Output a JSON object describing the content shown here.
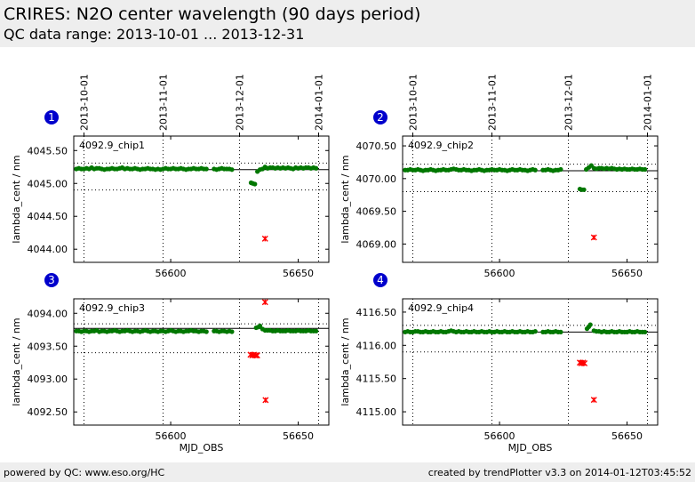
{
  "header": {
    "title": "CRIRES: N2O center wavelength (90 days period)",
    "subtitle": "QC data range: 2013-10-01 ... 2013-12-31"
  },
  "footer": {
    "left": "powered by QC: www.eso.org/HC",
    "right": "created by trendPlotter v3.3 on 2014-01-12T03:45:52"
  },
  "chart_data": [
    {
      "type": "scatter",
      "panel_number": "1",
      "label": "4092.9_chip1",
      "ylabel": "lambda_cent / nm",
      "xlabel": "",
      "xlim": [
        56562,
        56662
      ],
      "ylim": [
        4043.8,
        4045.72
      ],
      "yticks": [
        4044.0,
        4044.5,
        4045.0,
        4045.5
      ],
      "xticks": [
        56600,
        56650
      ],
      "date_ticks": [
        {
          "x": 56566,
          "label": "2013-10-01"
        },
        {
          "x": 56597,
          "label": "2013-11-01"
        },
        {
          "x": 56627,
          "label": "2013-12-01"
        },
        {
          "x": 56658,
          "label": "2014-01-01"
        }
      ],
      "ref_line": 4045.21,
      "dotted_lines": [
        4045.31,
        4044.9
      ],
      "series": [
        {
          "marker": "circle",
          "color": "#007700",
          "x": [
            56563,
            56564,
            56565,
            56566,
            56567,
            56568,
            56569,
            56570,
            56571,
            56572,
            56573,
            56574,
            56575,
            56576,
            56577,
            56578,
            56579,
            56580,
            56581,
            56582,
            56583,
            56584,
            56585,
            56586,
            56587,
            56588,
            56589,
            56590,
            56591,
            56592,
            56593,
            56594,
            56595,
            56596,
            56597,
            56598,
            56599,
            56600,
            56601,
            56602,
            56603,
            56604,
            56605,
            56606,
            56607,
            56608,
            56609,
            56610,
            56611,
            56612,
            56613,
            56614,
            56617,
            56618,
            56619,
            56620,
            56621,
            56622,
            56623,
            56624,
            56631.5,
            56632.2,
            56633,
            56634,
            56635,
            56636,
            56637,
            56638,
            56639,
            56640,
            56641,
            56642,
            56643,
            56644,
            56645,
            56646,
            56647,
            56648,
            56649,
            56650,
            56651,
            56652,
            56653,
            56654,
            56655,
            56656,
            56657
          ],
          "y": [
            4045.22,
            4045.23,
            4045.22,
            4045.22,
            4045.23,
            4045.22,
            4045.24,
            4045.22,
            4045.23,
            4045.23,
            4045.22,
            4045.21,
            4045.22,
            4045.22,
            4045.23,
            4045.22,
            4045.22,
            4045.23,
            4045.24,
            4045.22,
            4045.23,
            4045.22,
            4045.22,
            4045.23,
            4045.22,
            4045.21,
            4045.22,
            4045.22,
            4045.23,
            4045.22,
            4045.22,
            4045.21,
            4045.22,
            4045.21,
            4045.22,
            4045.23,
            4045.22,
            4045.22,
            4045.23,
            4045.22,
            4045.22,
            4045.23,
            4045.22,
            4045.21,
            4045.22,
            4045.22,
            4045.23,
            4045.22,
            4045.22,
            4045.23,
            4045.22,
            4045.22,
            4045.22,
            4045.21,
            4045.22,
            4045.23,
            4045.22,
            4045.22,
            4045.22,
            4045.21,
            4045.01,
            4045.0,
            4044.99,
            4045.18,
            4045.21,
            4045.22,
            4045.25,
            4045.23,
            4045.24,
            4045.24,
            4045.23,
            4045.24,
            4045.23,
            4045.24,
            4045.23,
            4045.24,
            4045.23,
            4045.22,
            4045.24,
            4045.23,
            4045.24,
            4045.23,
            4045.24,
            4045.24,
            4045.23,
            4045.24,
            4045.23
          ]
        },
        {
          "marker": "x",
          "color": "#ff0000",
          "x": [
            56637
          ],
          "y": [
            4044.16
          ]
        }
      ]
    },
    {
      "type": "scatter",
      "panel_number": "2",
      "label": "4092.9_chip2",
      "ylabel": "lambda_cent / nm",
      "xlabel": "",
      "xlim": [
        56562,
        56662
      ],
      "ylim": [
        4068.72,
        4070.65
      ],
      "yticks": [
        4069.0,
        4069.5,
        4070.0,
        4070.5
      ],
      "xticks": [
        56600,
        56650
      ],
      "date_ticks": [
        {
          "x": 56566,
          "label": "2013-10-01"
        },
        {
          "x": 56597,
          "label": "2013-11-01"
        },
        {
          "x": 56627,
          "label": "2013-12-01"
        },
        {
          "x": 56658,
          "label": "2014-01-01"
        }
      ],
      "ref_line": 4070.12,
      "dotted_lines": [
        4070.22,
        4069.8
      ],
      "series": [
        {
          "marker": "circle",
          "color": "#007700",
          "x": [
            56563,
            56564,
            56565,
            56566,
            56567,
            56568,
            56569,
            56570,
            56571,
            56572,
            56573,
            56574,
            56575,
            56576,
            56577,
            56578,
            56579,
            56580,
            56581,
            56582,
            56583,
            56584,
            56585,
            56586,
            56587,
            56588,
            56589,
            56590,
            56591,
            56592,
            56593,
            56594,
            56595,
            56596,
            56597,
            56598,
            56599,
            56600,
            56601,
            56602,
            56603,
            56604,
            56605,
            56606,
            56607,
            56608,
            56609,
            56610,
            56611,
            56612,
            56613,
            56614,
            56617,
            56618,
            56619,
            56620,
            56621,
            56622,
            56623,
            56624,
            56631.5,
            56632.3,
            56633.1,
            56634,
            56635,
            56636,
            56637,
            56638,
            56639,
            56640,
            56641,
            56642,
            56643,
            56644,
            56645,
            56646,
            56647,
            56648,
            56649,
            56650,
            56651,
            56652,
            56653,
            56654,
            56655,
            56656,
            56657
          ],
          "y": [
            4070.13,
            4070.13,
            4070.14,
            4070.13,
            4070.13,
            4070.14,
            4070.13,
            4070.12,
            4070.13,
            4070.13,
            4070.14,
            4070.13,
            4070.12,
            4070.13,
            4070.13,
            4070.14,
            4070.13,
            4070.13,
            4070.14,
            4070.15,
            4070.14,
            4070.13,
            4070.13,
            4070.14,
            4070.13,
            4070.13,
            4070.12,
            4070.13,
            4070.13,
            4070.14,
            4070.13,
            4070.12,
            4070.13,
            4070.13,
            4070.14,
            4070.13,
            4070.13,
            4070.14,
            4070.13,
            4070.13,
            4070.12,
            4070.13,
            4070.14,
            4070.13,
            4070.13,
            4070.14,
            4070.13,
            4070.13,
            4070.12,
            4070.13,
            4070.14,
            4070.13,
            4070.13,
            4070.13,
            4070.14,
            4070.13,
            4070.12,
            4070.13,
            4070.13,
            4070.14,
            4069.84,
            4069.83,
            4069.83,
            4070.14,
            4070.17,
            4070.2,
            4070.16,
            4070.15,
            4070.16,
            4070.16,
            4070.15,
            4070.16,
            4070.15,
            4070.16,
            4070.15,
            4070.14,
            4070.15,
            4070.14,
            4070.15,
            4070.14,
            4070.14,
            4070.15,
            4070.14,
            4070.14,
            4070.15,
            4070.14,
            4070.14
          ]
        },
        {
          "marker": "x",
          "color": "#ff0000",
          "x": [
            56637
          ],
          "y": [
            4069.1
          ]
        }
      ]
    },
    {
      "type": "scatter",
      "panel_number": "3",
      "label": "4092.9_chip3",
      "ylabel": "lambda_cent / nm",
      "xlabel": "MJD_OBS",
      "xlim": [
        56562,
        56662
      ],
      "ylim": [
        4092.3,
        4094.22
      ],
      "yticks": [
        4092.5,
        4093.0,
        4093.5,
        4094.0
      ],
      "xticks": [
        56600,
        56650
      ],
      "date_ticks": [],
      "ref_line": 4093.77,
      "dotted_lines": [
        4093.84,
        4093.4
      ],
      "series": [
        {
          "marker": "circle",
          "color": "#007700",
          "x": [
            56563,
            56564,
            56565,
            56566,
            56567,
            56568,
            56569,
            56570,
            56571,
            56572,
            56573,
            56574,
            56575,
            56576,
            56577,
            56578,
            56579,
            56580,
            56581,
            56582,
            56583,
            56584,
            56585,
            56586,
            56587,
            56588,
            56589,
            56590,
            56591,
            56592,
            56593,
            56594,
            56595,
            56596,
            56597,
            56598,
            56599,
            56600,
            56601,
            56602,
            56603,
            56604,
            56605,
            56606,
            56607,
            56608,
            56609,
            56610,
            56611,
            56612,
            56613,
            56614,
            56617,
            56618,
            56619,
            56620,
            56621,
            56622,
            56623,
            56624,
            56633.5,
            56634.3,
            56635,
            56636,
            56637,
            56638,
            56639,
            56640,
            56641,
            56642,
            56643,
            56644,
            56645,
            56646,
            56647,
            56648,
            56649,
            56650,
            56651,
            56652,
            56653,
            56654,
            56655,
            56656,
            56657
          ],
          "y": [
            4093.73,
            4093.73,
            4093.72,
            4093.73,
            4093.73,
            4093.72,
            4093.73,
            4093.73,
            4093.74,
            4093.72,
            4093.73,
            4093.73,
            4093.72,
            4093.73,
            4093.73,
            4093.74,
            4093.73,
            4093.72,
            4093.73,
            4093.73,
            4093.74,
            4093.73,
            4093.72,
            4093.73,
            4093.73,
            4093.72,
            4093.73,
            4093.74,
            4093.73,
            4093.72,
            4093.73,
            4093.73,
            4093.72,
            4093.73,
            4093.73,
            4093.72,
            4093.73,
            4093.74,
            4093.73,
            4093.72,
            4093.73,
            4093.73,
            4093.72,
            4093.73,
            4093.73,
            4093.74,
            4093.73,
            4093.73,
            4093.72,
            4093.73,
            4093.73,
            4093.72,
            4093.73,
            4093.73,
            4093.72,
            4093.73,
            4093.73,
            4093.72,
            4093.73,
            4093.72,
            4093.78,
            4093.79,
            4093.81,
            4093.76,
            4093.74,
            4093.74,
            4093.74,
            4093.73,
            4093.73,
            4093.74,
            4093.73,
            4093.73,
            4093.73,
            4093.74,
            4093.73,
            4093.73,
            4093.73,
            4093.74,
            4093.73,
            4093.73,
            4093.73,
            4093.74,
            4093.73,
            4093.73,
            4093.73
          ]
        },
        {
          "marker": "x",
          "color": "#ff0000",
          "x": [
            56631.3,
            56632,
            56632.6,
            56633.3,
            56633.9,
            56637,
            56637.2
          ],
          "y": [
            4093.37,
            4093.36,
            4093.37,
            4093.36,
            4093.36,
            4094.17,
            4092.68
          ]
        }
      ]
    },
    {
      "type": "scatter",
      "panel_number": "4",
      "label": "4092.9_chip4",
      "ylabel": "lambda_cent / nm",
      "xlabel": "MJD_OBS",
      "xlim": [
        56562,
        56662
      ],
      "ylim": [
        4114.8,
        4116.7
      ],
      "yticks": [
        4115.0,
        4115.5,
        4116.0,
        4116.5
      ],
      "xticks": [
        56600,
        56650
      ],
      "date_ticks": [],
      "ref_line": 4116.2,
      "dotted_lines": [
        4116.3,
        4115.9
      ],
      "series": [
        {
          "marker": "circle",
          "color": "#007700",
          "x": [
            56563,
            56564,
            56565,
            56566,
            56567,
            56568,
            56569,
            56570,
            56571,
            56572,
            56573,
            56574,
            56575,
            56576,
            56577,
            56578,
            56579,
            56580,
            56581,
            56582,
            56583,
            56584,
            56585,
            56586,
            56587,
            56588,
            56589,
            56590,
            56591,
            56592,
            56593,
            56594,
            56595,
            56596,
            56597,
            56598,
            56599,
            56600,
            56601,
            56602,
            56603,
            56604,
            56605,
            56606,
            56607,
            56608,
            56609,
            56610,
            56611,
            56612,
            56613,
            56614,
            56617,
            56618,
            56619,
            56620,
            56621,
            56622,
            56623,
            56624,
            56634.3,
            56635,
            56635.6,
            56637,
            56638,
            56639,
            56640,
            56641,
            56642,
            56643,
            56644,
            56645,
            56646,
            56647,
            56648,
            56649,
            56650,
            56651,
            56652,
            56653,
            56654,
            56655,
            56656,
            56657
          ],
          "y": [
            4116.2,
            4116.21,
            4116.2,
            4116.2,
            4116.21,
            4116.21,
            4116.2,
            4116.2,
            4116.21,
            4116.2,
            4116.2,
            4116.21,
            4116.2,
            4116.2,
            4116.21,
            4116.2,
            4116.2,
            4116.21,
            4116.22,
            4116.21,
            4116.2,
            4116.21,
            4116.2,
            4116.2,
            4116.21,
            4116.2,
            4116.2,
            4116.21,
            4116.2,
            4116.2,
            4116.21,
            4116.2,
            4116.2,
            4116.21,
            4116.2,
            4116.2,
            4116.21,
            4116.2,
            4116.2,
            4116.21,
            4116.2,
            4116.2,
            4116.21,
            4116.2,
            4116.2,
            4116.21,
            4116.2,
            4116.2,
            4116.21,
            4116.2,
            4116.2,
            4116.21,
            4116.2,
            4116.2,
            4116.21,
            4116.2,
            4116.2,
            4116.21,
            4116.2,
            4116.2,
            4116.25,
            4116.28,
            4116.31,
            4116.22,
            4116.21,
            4116.21,
            4116.2,
            4116.21,
            4116.2,
            4116.2,
            4116.21,
            4116.2,
            4116.2,
            4116.21,
            4116.2,
            4116.2,
            4116.2,
            4116.21,
            4116.2,
            4116.2,
            4116.21,
            4116.2,
            4116.2,
            4116.2
          ]
        },
        {
          "marker": "x",
          "color": "#ff0000",
          "x": [
            56631.5,
            56632.1,
            56632.7,
            56633.3,
            56637
          ],
          "y": [
            4115.74,
            4115.73,
            4115.74,
            4115.73,
            4115.18
          ]
        }
      ]
    }
  ]
}
